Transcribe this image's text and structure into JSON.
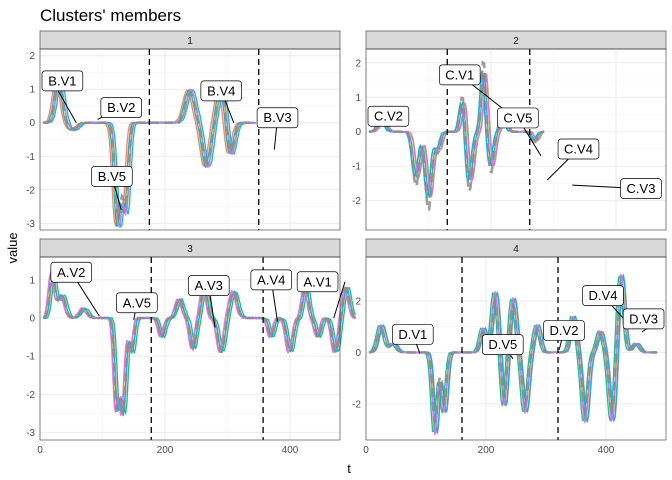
{
  "title": "Clusters' members",
  "xlabel": "t",
  "ylabel": "value",
  "chart_data": [
    {
      "type": "line",
      "panel": "1",
      "xlim": [
        0,
        480
      ],
      "ylim": [
        -3.2,
        2.2
      ],
      "x_ticks": [
        0,
        200,
        400
      ],
      "y_ticks": [
        -3,
        -2,
        -1,
        0,
        1,
        2
      ],
      "series_count": 5,
      "series_length": 340,
      "boundaries": [
        175,
        350
      ],
      "labels": [
        {
          "text": "B.V1",
          "x": 20,
          "y": 1.25,
          "ax": 58,
          "ay": 0.0
        },
        {
          "text": "B.V2",
          "x": 130,
          "y": 0.45,
          "ax": 92,
          "ay": 0.1
        },
        {
          "text": "B.V4",
          "x": 290,
          "y": 0.95,
          "ax": 310,
          "ay": 0.0
        },
        {
          "text": "B.V3",
          "x": 380,
          "y": 0.15,
          "ax": 375,
          "ay": -0.8
        },
        {
          "text": "B.V5",
          "x": 115,
          "y": -1.6,
          "ax": 130,
          "ay": -2.6
        }
      ]
    },
    {
      "type": "line",
      "panel": "2",
      "xlim": [
        0,
        480
      ],
      "ylim": [
        -2.85,
        2.4
      ],
      "x_ticks": [
        0,
        200,
        400
      ],
      "y_ticks": [
        -2,
        -1,
        0,
        1,
        2
      ],
      "series_count": 5,
      "series_length": 280,
      "boundaries": [
        130,
        262
      ],
      "labels": [
        {
          "text": "C.V1",
          "x": 150,
          "y": 1.65,
          "ax": 245,
          "ay": 0.3
        },
        {
          "text": "C.V2",
          "x": 15,
          "y": 0.45,
          "ax": 25,
          "ay": 0.2
        },
        {
          "text": "C.V5",
          "x": 243,
          "y": 0.4,
          "ax": 280,
          "ay": -0.7
        },
        {
          "text": "C.V4",
          "x": 340,
          "y": -0.5,
          "ax": 290,
          "ay": -1.4
        },
        {
          "text": "C.V3",
          "x": 440,
          "y": -1.65,
          "ax": 330,
          "ay": -1.55
        }
      ]
    },
    {
      "type": "line",
      "panel": "3",
      "xlim": [
        0,
        480
      ],
      "ylim": [
        -3.2,
        1.6
      ],
      "x_ticks": [
        0,
        200,
        400
      ],
      "y_ticks": [
        -3,
        -2,
        -1,
        0,
        1
      ],
      "series_count": 5,
      "series_length": 500,
      "boundaries": [
        178,
        357
      ],
      "labels": [
        {
          "text": "A.V2",
          "x": 50,
          "y": 1.2,
          "ax": 95,
          "ay": 0.05
        },
        {
          "text": "A.V5",
          "x": 155,
          "y": 0.4,
          "ax": 150,
          "ay": -0.05
        },
        {
          "text": "A.V3",
          "x": 270,
          "y": 0.85,
          "ax": 280,
          "ay": -0.25
        },
        {
          "text": "A.V4",
          "x": 370,
          "y": 1.0,
          "ax": 380,
          "ay": -0.1
        },
        {
          "text": "A.V1",
          "x": 488,
          "y": 0.95,
          "ax": 470,
          "ay": 0.0
        }
      ]
    },
    {
      "type": "line",
      "panel": "4",
      "xlim": [
        0,
        500
      ],
      "ylim": [
        -3.4,
        3.7
      ],
      "x_ticks": [
        0,
        200,
        400
      ],
      "y_ticks": [
        -2,
        0,
        2
      ],
      "series_count": 5,
      "series_length": 480,
      "boundaries": [
        160,
        320
      ],
      "labels": [
        {
          "text": "D.V1",
          "x": 78,
          "y": 0.7,
          "ax": 90,
          "ay": -0.05
        },
        {
          "text": "D.V5",
          "x": 228,
          "y": 0.3,
          "ax": 245,
          "ay": -0.25
        },
        {
          "text": "D.V2",
          "x": 330,
          "y": 0.85,
          "ax": 322,
          "ay": 0.1
        },
        {
          "text": "D.V4",
          "x": 395,
          "y": 2.2,
          "ax": 445,
          "ay": 0.9
        },
        {
          "text": "D.V3",
          "x": 495,
          "y": 1.3,
          "ax": 460,
          "ay": 0.8
        }
      ]
    }
  ],
  "member_colors": [
    "#F8766D",
    "#A3A500",
    "#00BF7D",
    "#00B0F6",
    "#E76BF3"
  ],
  "centroid_color": "#8c8c8c"
}
